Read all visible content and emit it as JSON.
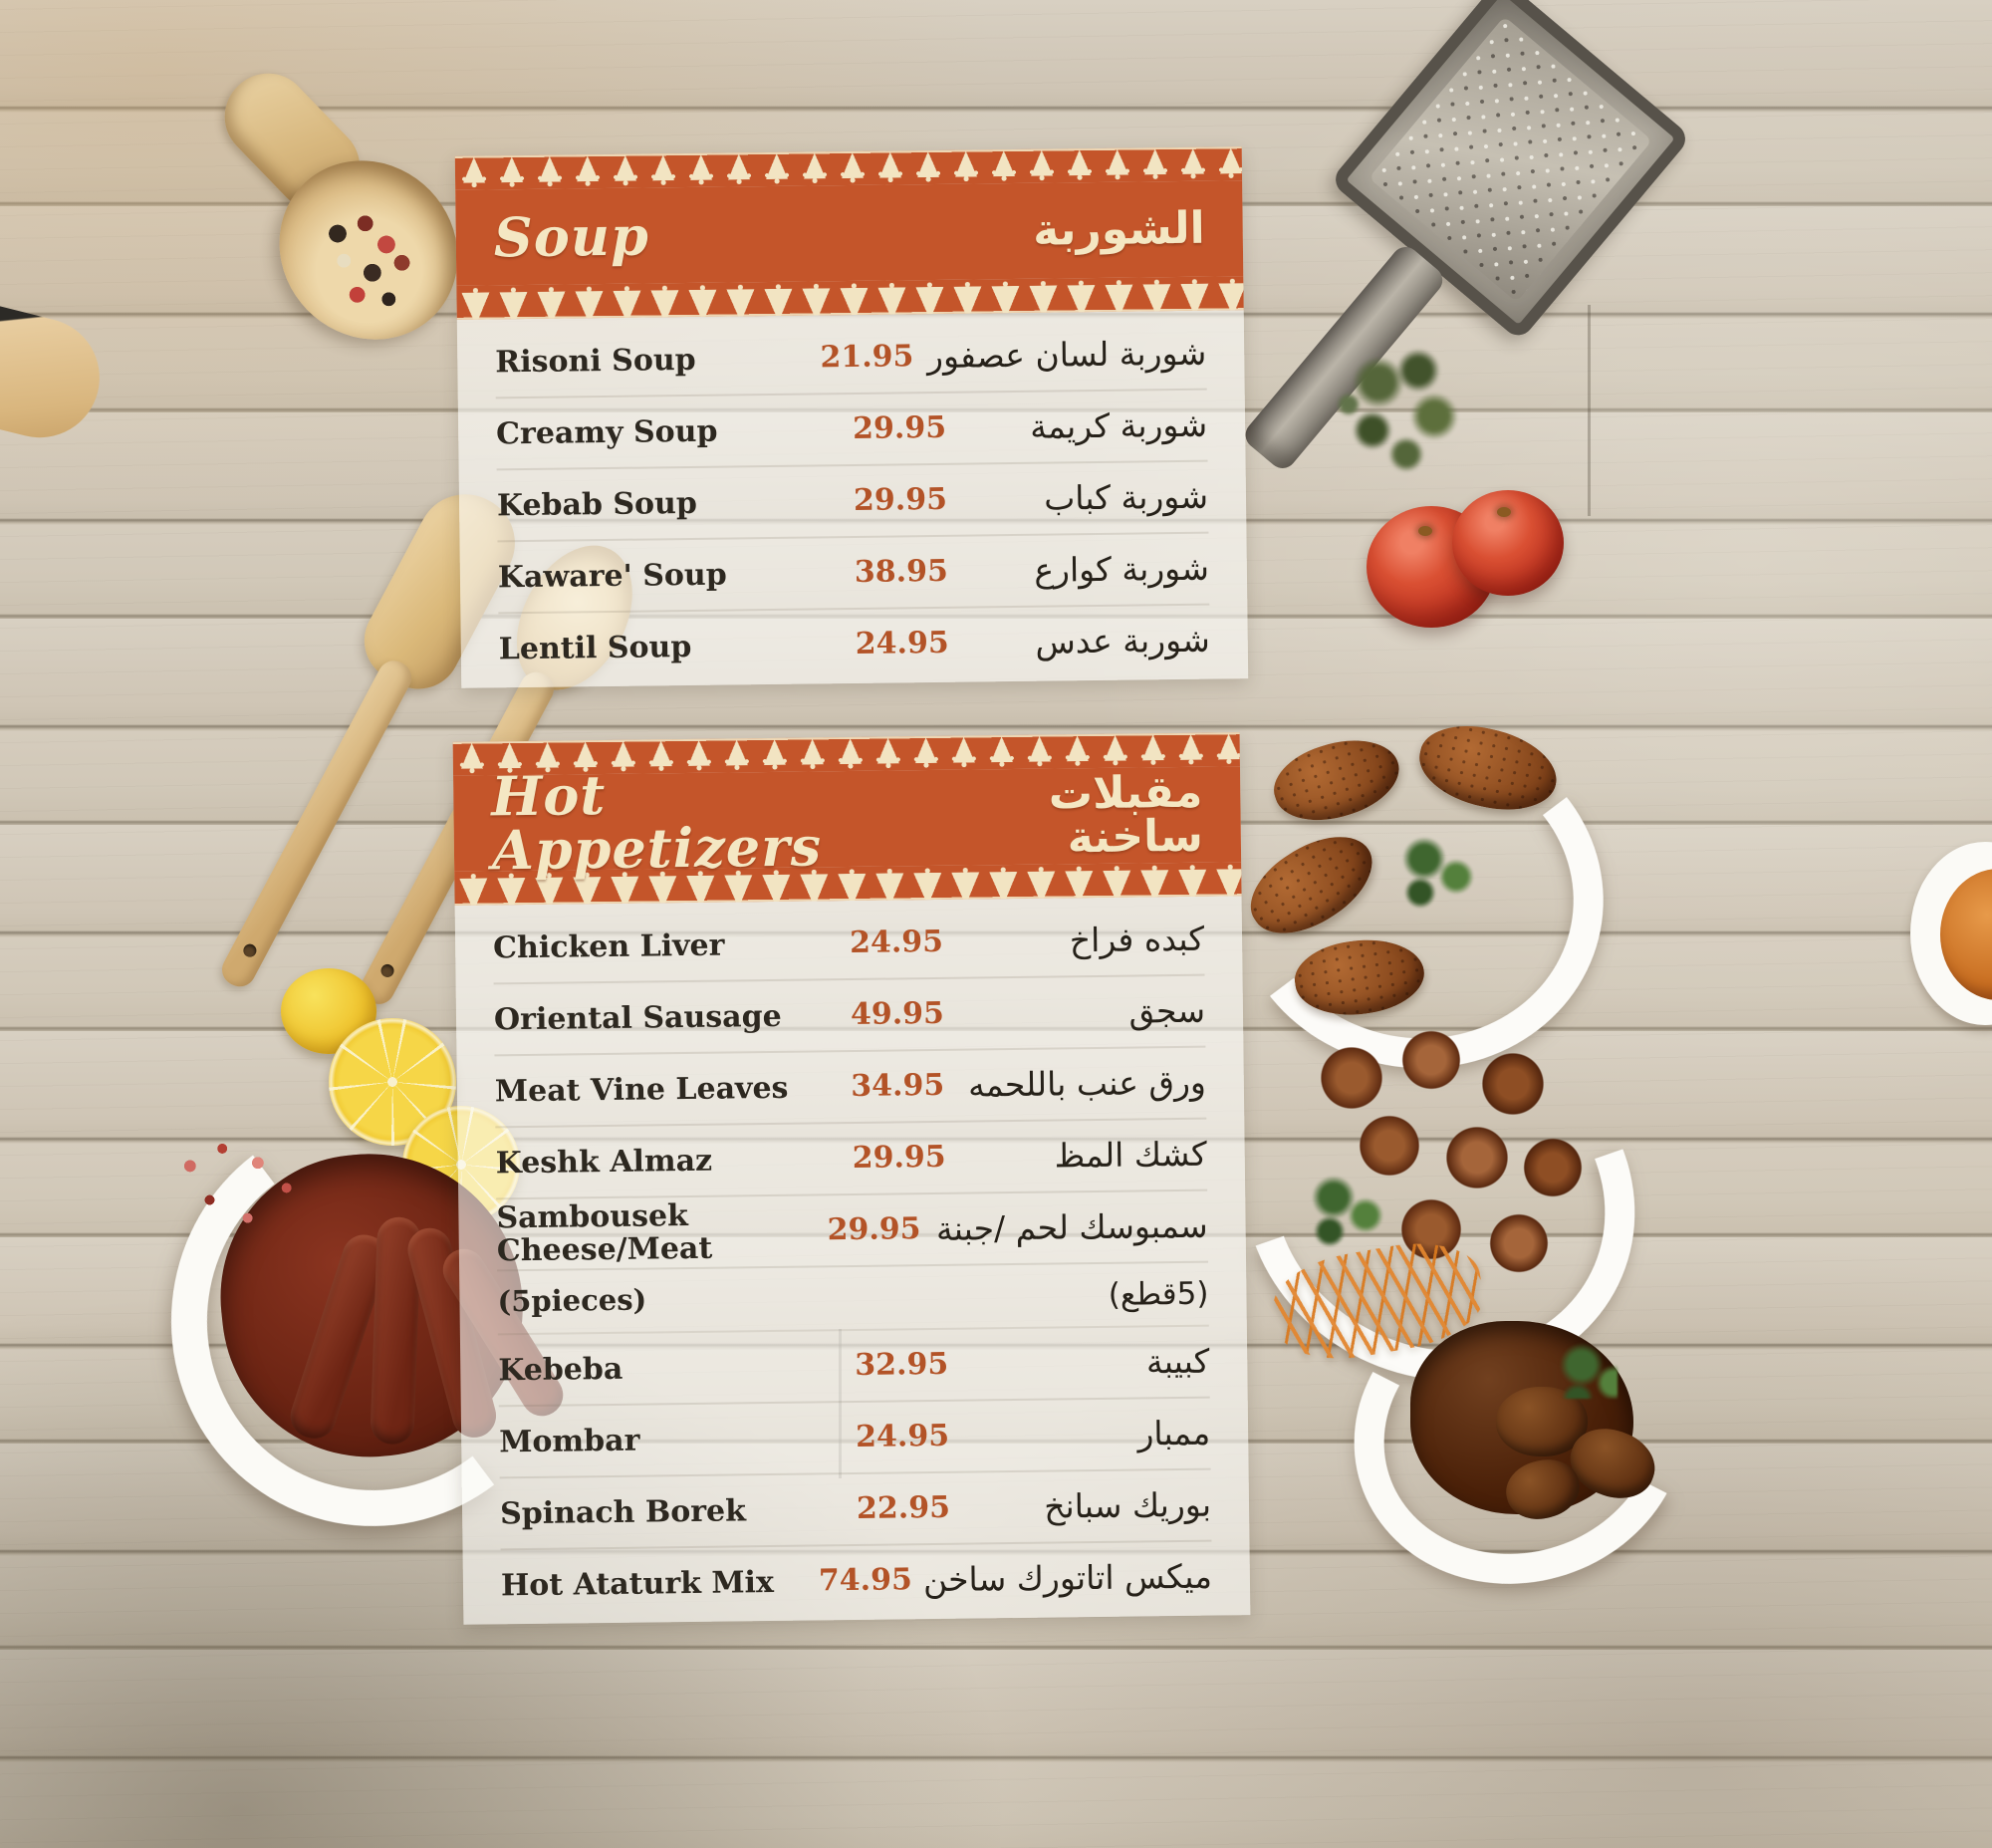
{
  "menu": {
    "sections": [
      {
        "title_en": "Soup",
        "title_ar": "الشوربة",
        "items": [
          {
            "en": "Risoni Soup",
            "price": "21.95",
            "ar": "شوربة لسان عصفور"
          },
          {
            "en": "Creamy Soup",
            "price": "29.95",
            "ar": "شوربة كريمة"
          },
          {
            "en": "Kebab Soup",
            "price": "29.95",
            "ar": "شوربة كباب"
          },
          {
            "en": "Kaware' Soup",
            "price": "38.95",
            "ar": "شوربة كوارع"
          },
          {
            "en": "Lentil Soup",
            "price": "24.95",
            "ar": "شوربة عدس"
          }
        ]
      },
      {
        "title_en": "Hot Appetizers",
        "title_ar": "مقبلات ساخنة",
        "items": [
          {
            "en": "Chicken Liver",
            "price": "24.95",
            "ar": "كبده فراخ"
          },
          {
            "en": "Oriental Sausage",
            "price": "49.95",
            "ar": "سجق"
          },
          {
            "en": "Meat Vine Leaves",
            "price": "34.95",
            "ar": "ورق عنب باللحمه"
          },
          {
            "en": "Keshk Almaz",
            "price": "29.95",
            "ar": "كشك المظ"
          },
          {
            "en": "Sambousek Cheese/Meat",
            "price": "29.95",
            "ar": "سمبوسك لحم /جبنة",
            "note_en": "(5pieces)",
            "note_ar": "(5قطع)"
          },
          {
            "en": "Kebeba",
            "price": "32.95",
            "ar": "كبيبة"
          },
          {
            "en": "Mombar",
            "price": "24.95",
            "ar": "ممبار"
          },
          {
            "en": "Spinach Borek",
            "price": "22.95",
            "ar": "بوريك سبانخ"
          },
          {
            "en": "Hot Ataturk Mix",
            "price": "74.95",
            "ar": "ميكس اتاتورك ساخن"
          }
        ]
      }
    ]
  },
  "colors": {
    "header_orange": "#c4552a",
    "lace_cream": "#f2e4c2",
    "price_text": "#b35327",
    "item_text": "#2d2820"
  },
  "decor": [
    "wooden-scoop-peppercorns-photo",
    "metal-grater-photo",
    "herb-sprig-photo",
    "tomatoes-photo",
    "wooden-spatulas-photo",
    "lemon-slices-photo",
    "sausage-dish-photo",
    "kibbeh-plate-photo",
    "meatballs-plate-photo",
    "braised-meat-dish-photo",
    "side-plate-photo"
  ]
}
